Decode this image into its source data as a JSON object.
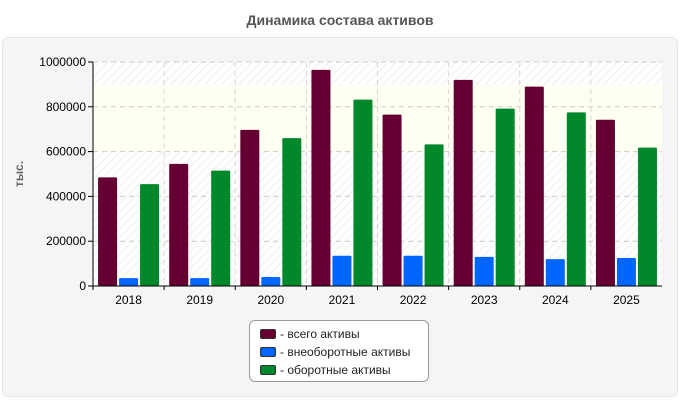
{
  "title": "Динамика состава активов",
  "chart_data": {
    "type": "bar",
    "title": "Динамика состава активов",
    "xlabel": "",
    "ylabel": "тыс.",
    "ylim": [
      0,
      1000000
    ],
    "yticks": [
      "0",
      "200000",
      "400000",
      "600000",
      "800000",
      "1000000"
    ],
    "categories": [
      "2018",
      "2019",
      "2020",
      "2021",
      "2022",
      "2023",
      "2024",
      "2025"
    ],
    "grid": true,
    "legend_position": "bottom",
    "series": [
      {
        "name": "- всего активы",
        "color": "#660033",
        "values": [
          485000,
          545000,
          697000,
          965000,
          765000,
          920000,
          890000,
          742000
        ]
      },
      {
        "name": "- внеоборотные активы",
        "color": "#0066ff",
        "values": [
          35000,
          35000,
          40000,
          135000,
          135000,
          130000,
          120000,
          125000
        ]
      },
      {
        "name": "- оборотные активы",
        "color": "#00882b",
        "values": [
          455000,
          515000,
          660000,
          832000,
          632000,
          792000,
          775000,
          618000
        ]
      }
    ]
  }
}
